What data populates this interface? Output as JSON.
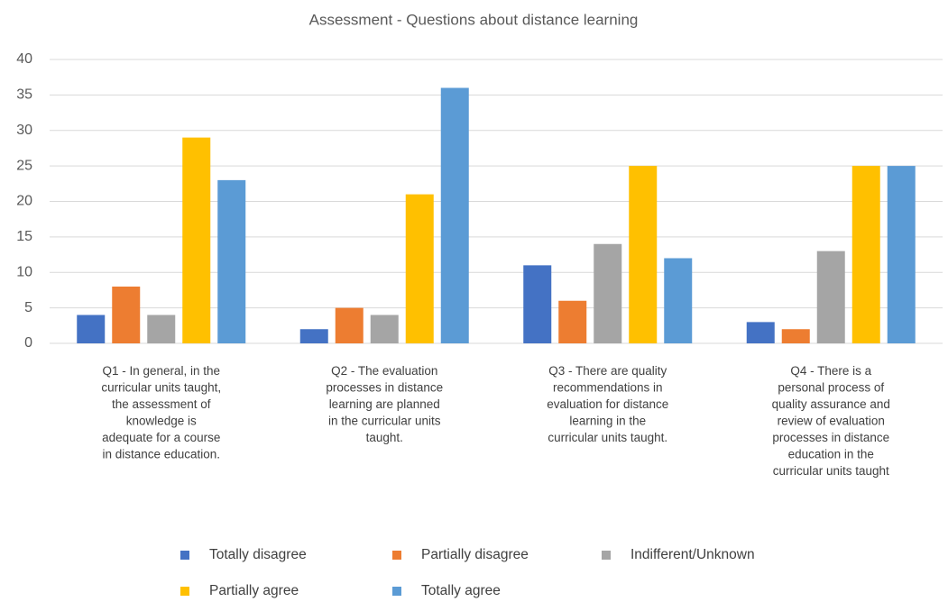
{
  "chart_data": {
    "type": "bar",
    "title": "Assessment - Questions about distance learning",
    "categories": [
      "Q1 - In general, in the\ncurricular units taught,\nthe assessment of\nknowledge is\nadequate for a course\nin distance education.",
      "Q2 - The evaluation\nprocesses in distance\nlearning are planned\nin the curricular units\ntaught.",
      "Q3 - There are quality\nrecommendations in\nevaluation for distance\nlearning in the\ncurricular units taught.",
      "Q4 - There is a\npersonal process of\nquality assurance and\nreview of evaluation\nprocesses in distance\neducation in the\ncurricular units taught"
    ],
    "series": [
      {
        "name": "Totally disagree",
        "color": "#4472c4",
        "values": [
          4,
          2,
          11,
          3
        ]
      },
      {
        "name": "Partially disagree",
        "color": "#ed7d31",
        "values": [
          8,
          5,
          6,
          2
        ]
      },
      {
        "name": "Indifferent/Unknown",
        "color": "#a5a5a5",
        "values": [
          4,
          4,
          14,
          13
        ]
      },
      {
        "name": "Partially agree",
        "color": "#ffc000",
        "values": [
          29,
          21,
          25,
          25
        ]
      },
      {
        "name": "Totally agree",
        "color": "#5b9bd5",
        "values": [
          23,
          36,
          12,
          25
        ]
      }
    ],
    "ylim": [
      0,
      40
    ],
    "yticks": [
      0,
      5,
      10,
      15,
      20,
      25,
      30,
      35,
      40
    ],
    "grid": true,
    "legend": "bottom"
  }
}
